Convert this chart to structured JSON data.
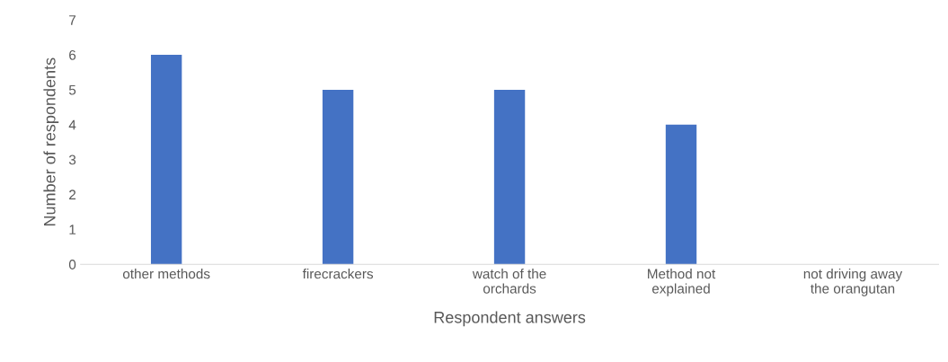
{
  "chart_data": {
    "type": "bar",
    "categories": [
      "other methods",
      "firecrackers",
      "watch of the\norchards",
      "Method not\nexplained",
      "not driving away\nthe orangutan"
    ],
    "values": [
      6,
      5,
      5,
      4,
      0
    ],
    "color": "#4472c4",
    "xlabel": "Respondent answers",
    "ylabel": "Number of respondents",
    "ylim": [
      0,
      7
    ],
    "yticks": [
      0,
      1,
      2,
      3,
      4,
      5,
      6,
      7
    ],
    "grid": false,
    "legend": false
  }
}
